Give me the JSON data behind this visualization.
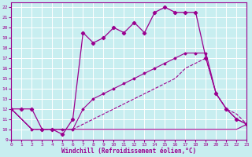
{
  "xlabel": "Windchill (Refroidissement éolien,°C)",
  "xlim": [
    0,
    23
  ],
  "ylim": [
    9,
    22.5
  ],
  "yticks": [
    9,
    10,
    11,
    12,
    13,
    14,
    15,
    16,
    17,
    18,
    19,
    20,
    21,
    22
  ],
  "xticks": [
    0,
    1,
    2,
    3,
    4,
    5,
    6,
    7,
    8,
    9,
    10,
    11,
    12,
    13,
    14,
    15,
    16,
    17,
    18,
    19,
    20,
    21,
    22,
    23
  ],
  "bg_color": "#c8eef0",
  "grid_color": "#ffffff",
  "line_color": "#9b008f",
  "line1_x": [
    0,
    1,
    2,
    3,
    4,
    5,
    6,
    7,
    8,
    9,
    10,
    11,
    12,
    13,
    14,
    15,
    16,
    17,
    18,
    19,
    20,
    21,
    22,
    23
  ],
  "line1_y": [
    12,
    12,
    12,
    10,
    10,
    9.5,
    11,
    19.5,
    18.5,
    19,
    20,
    19.5,
    20.5,
    19.5,
    21.5,
    22,
    21.5,
    21.5,
    21.5,
    17,
    13.5,
    12,
    11,
    10.5
  ],
  "line2_x": [
    0,
    2,
    3,
    4,
    5,
    6,
    7,
    8,
    9,
    10,
    11,
    12,
    13,
    14,
    15,
    16,
    17,
    18,
    19,
    20,
    21,
    22,
    23
  ],
  "line2_y": [
    12,
    10,
    10,
    10,
    10,
    10,
    12,
    13,
    13.5,
    14,
    14.5,
    15,
    15.5,
    16,
    16.5,
    17,
    17.5,
    17.5,
    17.5,
    13.5,
    12,
    11,
    10.5
  ],
  "line3_x": [
    0,
    2,
    3,
    4,
    5,
    6,
    7,
    8,
    9,
    10,
    11,
    12,
    13,
    14,
    15,
    16,
    17,
    18,
    19,
    20,
    21,
    22,
    23
  ],
  "line3_y": [
    12,
    10,
    10,
    10,
    10,
    10,
    10.5,
    11,
    11.5,
    12,
    12.5,
    13,
    13.5,
    14,
    14.5,
    15,
    16,
    16.5,
    17,
    13.5,
    12,
    11.5,
    10.5
  ],
  "line4_x": [
    0,
    2,
    3,
    4,
    5,
    6,
    7,
    8,
    19,
    20,
    21,
    22,
    23
  ],
  "line4_y": [
    12,
    10,
    10,
    10,
    10,
    10,
    10,
    10,
    10,
    10,
    10,
    10,
    10.5
  ]
}
